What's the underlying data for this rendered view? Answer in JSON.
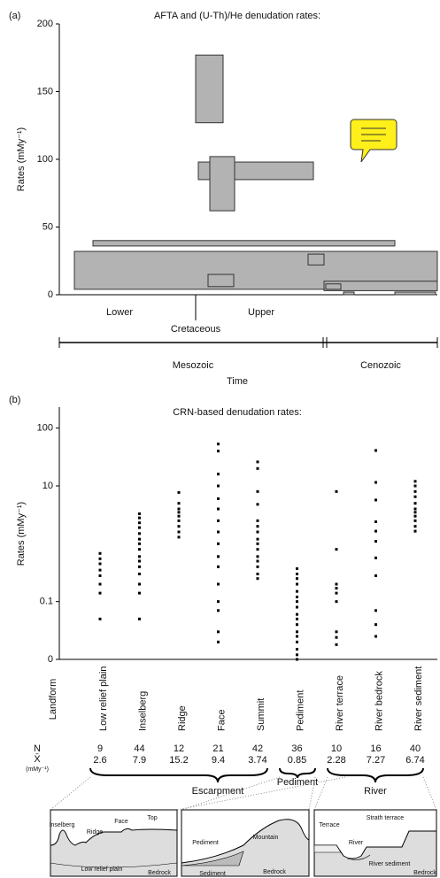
{
  "chart_data": [
    {
      "type": "floating-bar",
      "panel_label": "(a)",
      "title": "AFTA and (U-Th)/He denudation rates:",
      "y_label": "Rates (mMy⁻¹)",
      "ylim": [
        0,
        200
      ],
      "yticks": [
        0,
        50,
        100,
        150,
        200
      ],
      "ranges": [
        [
          127,
          177
        ],
        [
          85,
          98
        ],
        [
          62,
          102
        ],
        [
          36,
          40
        ],
        [
          4,
          32
        ],
        [
          22,
          30
        ],
        [
          6,
          15
        ],
        [
          3,
          10
        ],
        [
          4,
          8
        ],
        [
          0,
          2
        ],
        [
          0,
          2
        ]
      ],
      "color": "#b3b3b3",
      "epochs": [
        "Lower",
        "Upper"
      ],
      "period": "Cretaceous",
      "eras": [
        "Mesozoic",
        "Cenozoic"
      ],
      "x_label": "Time"
    },
    {
      "type": "strip",
      "panel_label": "(b)",
      "title": "CRN-based denudation rates:",
      "y_label": "Rates (mMy⁻¹)",
      "x_label": "Landform",
      "log_scale": true,
      "ylim": [
        0.01,
        200
      ],
      "yticks": [
        {
          "value": 0.01,
          "label": "0"
        },
        0.1,
        10,
        100
      ],
      "categories": [
        "Low relief plain",
        "Inselberg",
        "Ridge",
        "Face",
        "Summit",
        "Pediment",
        "River terrace",
        "River bedrock",
        "River sediment"
      ],
      "values": [
        [
          0.68,
          0.55,
          0.45,
          0.35,
          0.28,
          0.2,
          0.14,
          0.05
        ],
        [
          3.3,
          2.8,
          2.3,
          1.9,
          1.5,
          1.2,
          1,
          0.8,
          0.6,
          0.5,
          0.4,
          0.3,
          0.2,
          0.14,
          0.05
        ],
        [
          7.7,
          5,
          4,
          3.5,
          3,
          2.5,
          2,
          1.6,
          1.3
        ],
        [
          53,
          40,
          16,
          10,
          6,
          4,
          2.5,
          1.6,
          1,
          0.6,
          0.4,
          0.2,
          0.1,
          0.07,
          0.03,
          0.02
        ],
        [
          26,
          20,
          8,
          4.8,
          2.5,
          2,
          1.6,
          1.2,
          1,
          0.8,
          0.6,
          0.5,
          0.4,
          0.3,
          0.25
        ],
        [
          0.37,
          0.3,
          0.25,
          0.2,
          0.15,
          0.12,
          0.1,
          0.08,
          0.06,
          0.05,
          0.04,
          0.03,
          0.025,
          0.02,
          0.015,
          0.012,
          0.01
        ],
        [
          8,
          0.8,
          0.2,
          0.17,
          0.14,
          0.1,
          0.03,
          0.024,
          0.018
        ],
        [
          41,
          11.5,
          5.7,
          2.4,
          1.65,
          1.1,
          0.57,
          0.28,
          0.07,
          0.04,
          0.025
        ],
        [
          12,
          10,
          8,
          6.5,
          5,
          4,
          3.5,
          3,
          2.5,
          2,
          1.65
        ]
      ],
      "color": "#000000"
    }
  ],
  "summary": {
    "n_label": "N",
    "mean_label": "X̄",
    "mean_unit": "(mMy⁻¹)",
    "n": [
      9,
      44,
      12,
      21,
      42,
      36,
      10,
      16,
      40
    ],
    "mean": [
      2.6,
      7.9,
      15.2,
      9.4,
      3.74,
      0.85,
      2.28,
      7.27,
      6.74
    ]
  },
  "groups": [
    "Escarpment",
    "Pediment",
    "River"
  ],
  "sketches": [
    [
      "Inselberg",
      "Ridge",
      "Face",
      "Top",
      "Low relief plain",
      "Bedrock"
    ],
    [
      "Pediment",
      "Mountain",
      "Sediment",
      "Bedrock"
    ],
    [
      "Terrace",
      "River",
      "Strath terrace",
      "River sediment",
      "Bedrock"
    ]
  ]
}
